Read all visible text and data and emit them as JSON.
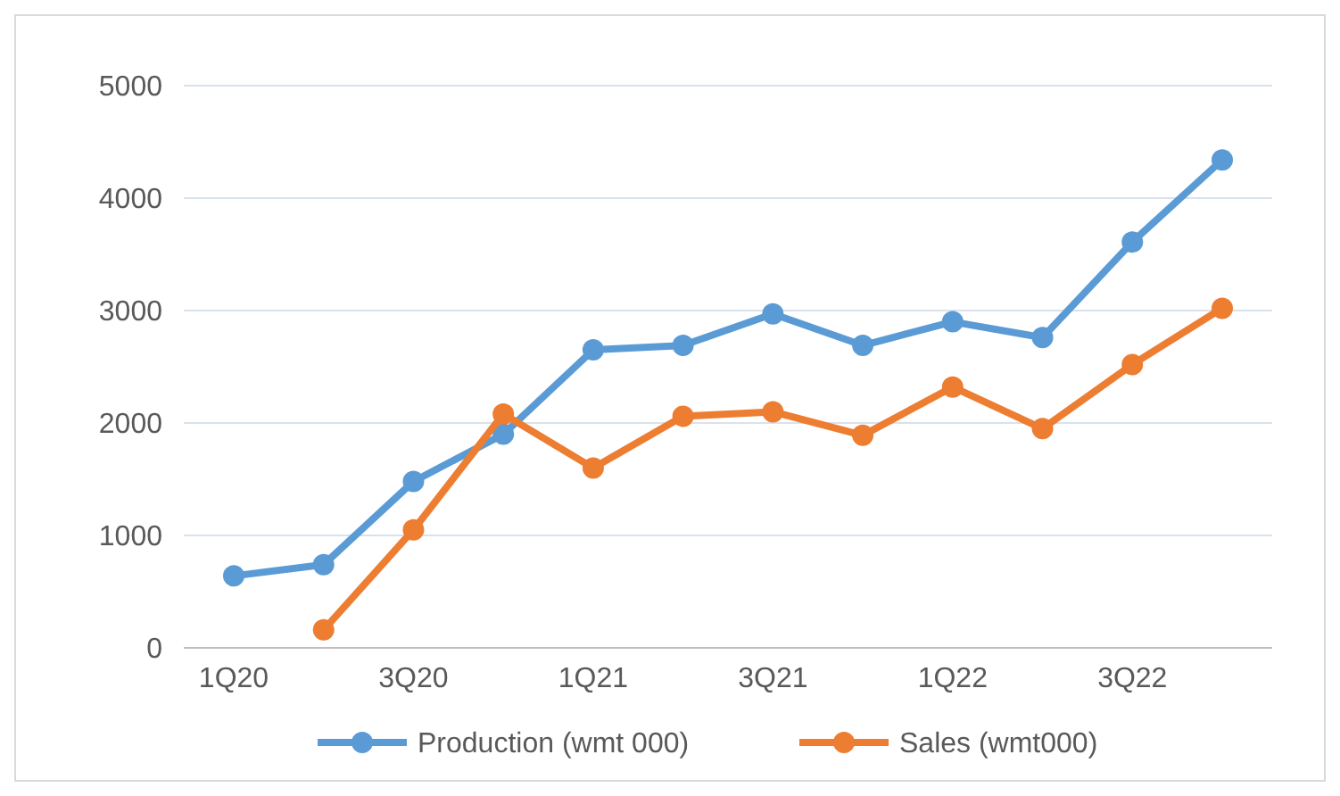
{
  "chart_data": {
    "type": "line",
    "categories": [
      "1Q20",
      null,
      "3Q20",
      null,
      "1Q21",
      null,
      "3Q21",
      null,
      "1Q22",
      null,
      "3Q22",
      null
    ],
    "series": [
      {
        "name": "Production (wmt 000)",
        "color": "#5b9bd5",
        "values": [
          640,
          740,
          1480,
          1900,
          2650,
          2690,
          2970,
          2690,
          2900,
          2760,
          3610,
          4340
        ]
      },
      {
        "name": "Sales (wmt000)",
        "color": "#ed7d31",
        "values": [
          null,
          160,
          1050,
          2080,
          1600,
          2060,
          2100,
          1890,
          2320,
          1950,
          2520,
          3020
        ]
      }
    ],
    "ylim": [
      0,
      5000
    ],
    "yticks": [
      0,
      1000,
      2000,
      3000,
      4000,
      5000
    ],
    "grid": "y",
    "legend": "bottom",
    "marker": "circle",
    "line_style": "solid"
  }
}
